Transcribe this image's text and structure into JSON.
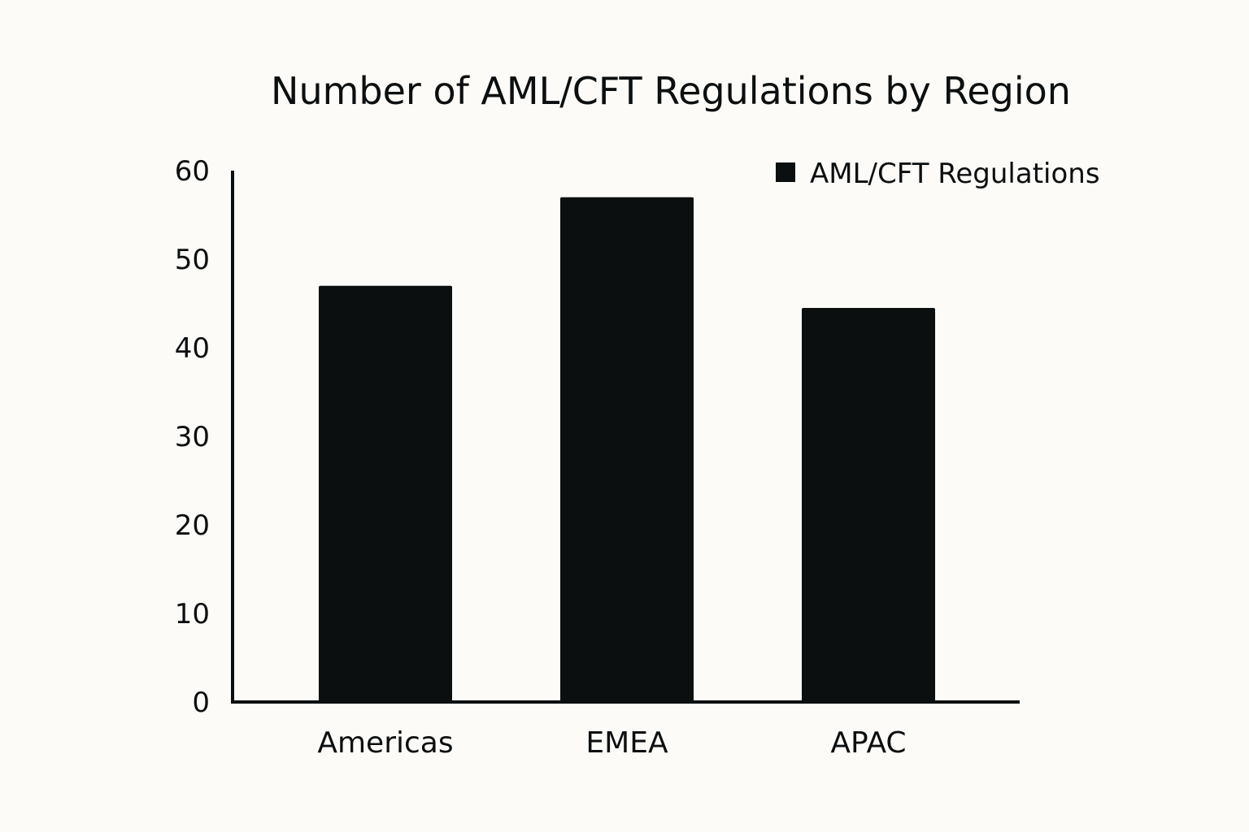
{
  "chart_data": {
    "type": "bar",
    "title": "Number of AML/CFT Regulations by Region",
    "xlabel": "",
    "ylabel": "",
    "categories": [
      "Americas",
      "EMEA",
      "APAC"
    ],
    "series": [
      {
        "name": "AML/CFT Regulations",
        "values": [
          47,
          57,
          44.5
        ],
        "color": "#0c0f10"
      }
    ],
    "ylim": [
      0,
      60
    ],
    "yticks": [
      "0",
      "10",
      "20",
      "30",
      "40",
      "50",
      "60"
    ],
    "grid": false,
    "legend": "top-right"
  }
}
